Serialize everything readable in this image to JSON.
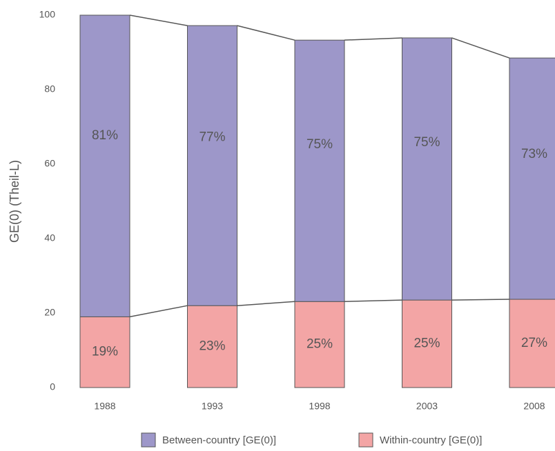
{
  "chart_data": {
    "type": "stacked_bar",
    "y_label": "GE(0) (Theil-L)",
    "categories": [
      "1988",
      "1993",
      "1998",
      "2003",
      "2008"
    ],
    "series": [
      {
        "name": "Between-country [GE(0)]",
        "color": "#9d97c9",
        "values": [
          81.0,
          75.2,
          70.2,
          70.4,
          64.8
        ],
        "share_labels": [
          "81%",
          "77%",
          "75%",
          "75%",
          "73%"
        ]
      },
      {
        "name": "Within-country [GE(0)]",
        "color": "#f3a5a5",
        "values": [
          19.0,
          22.0,
          23.1,
          23.5,
          23.7
        ],
        "share_labels": [
          "19%",
          "23%",
          "25%",
          "25%",
          "27%"
        ]
      }
    ],
    "ylim": [
      0,
      100
    ],
    "yticks": [
      0,
      20,
      40,
      60,
      80,
      100
    ],
    "grid": false
  }
}
